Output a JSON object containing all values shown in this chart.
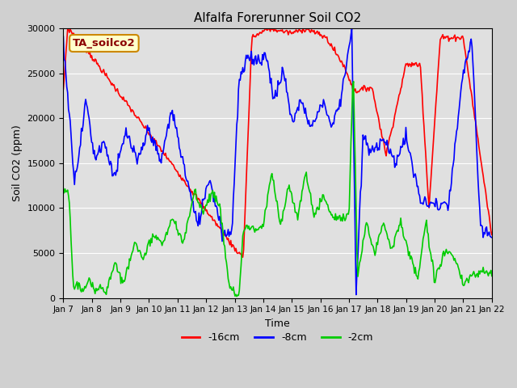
{
  "title": "Alfalfa Forerunner Soil CO2",
  "xlabel": "Time",
  "ylabel": "Soil CO2 (ppm)",
  "legend_label": "TA_soilco2",
  "series_labels": [
    "-16cm",
    "-8cm",
    "-2cm"
  ],
  "series_colors": [
    "#ff0000",
    "#0000ff",
    "#00cc00"
  ],
  "ylim": [
    0,
    30000
  ],
  "figsize": [
    6.4,
    4.8
  ],
  "dpi": 100,
  "background_color": "#d0d0d0",
  "plot_bg_color": "#e0e0e0",
  "xtick_labels": [
    "Jan 7",
    "Jan 8",
    "Jan 9",
    "Jan 10",
    "Jan 11",
    "Jan 12",
    "Jan 13",
    "Jan 14",
    "Jan 15",
    "Jan 16",
    "Jan 17",
    "Jan 18",
    "Jan 19",
    "Jan 20",
    "Jan 21",
    "Jan 22"
  ],
  "n_points": 500
}
